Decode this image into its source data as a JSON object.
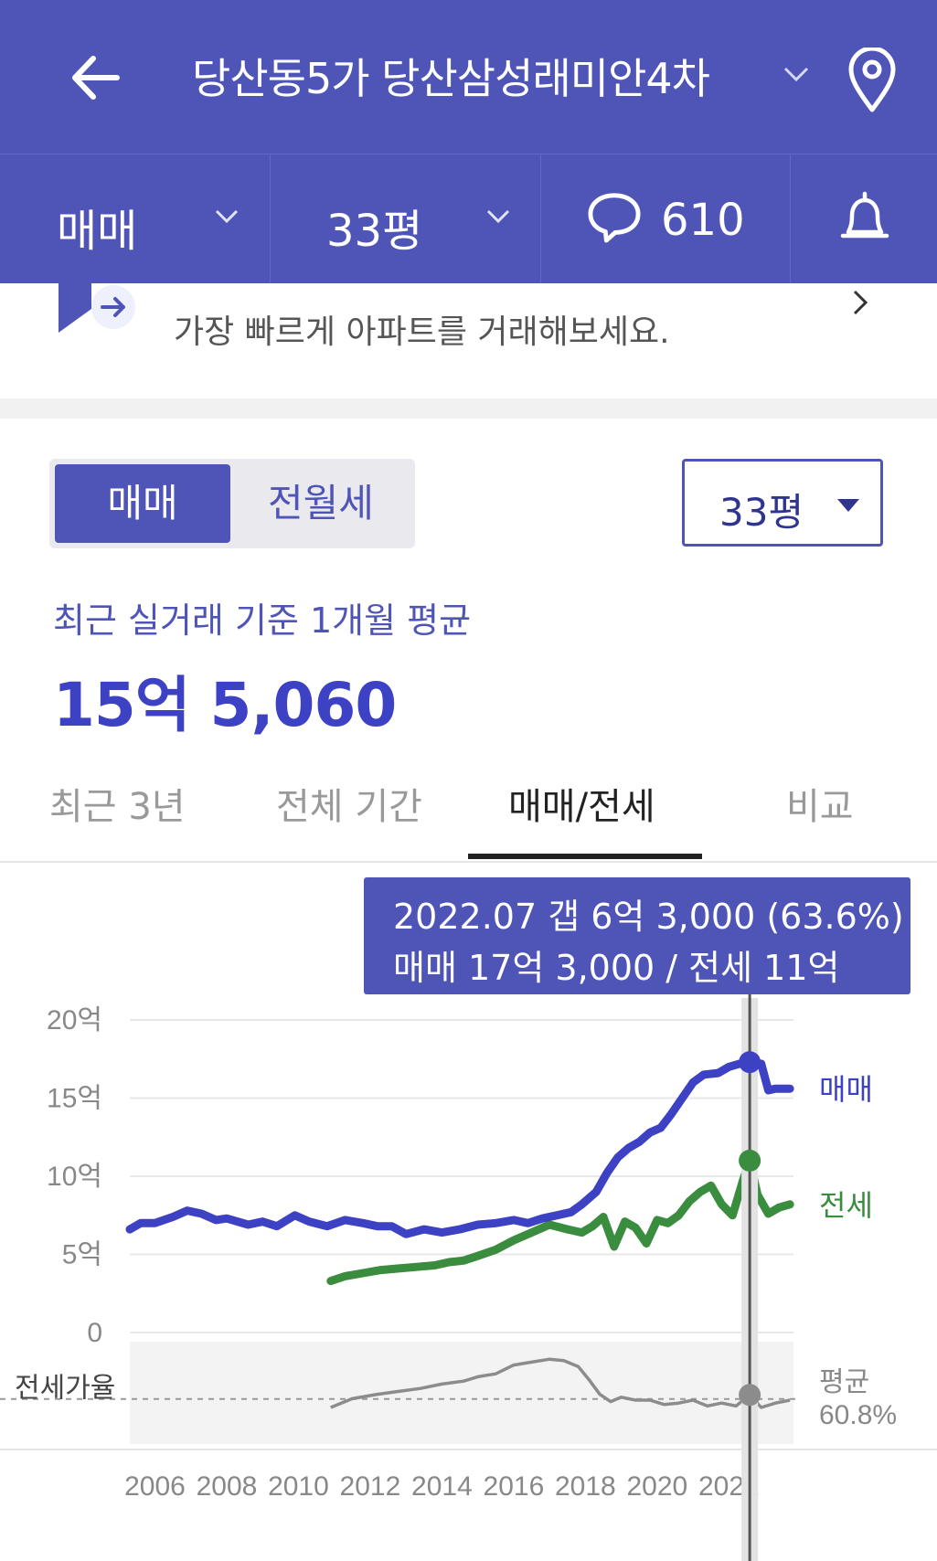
{
  "header": {
    "title": "당산동5가 당산삼성래미안4차"
  },
  "subbar": {
    "deal_type": "매매",
    "size": "33평",
    "comment_count": "610"
  },
  "banner": {
    "text": "가장 빠르게 아파트를 거래해보세요."
  },
  "toggle": {
    "sale": "매매",
    "rent": "전월세"
  },
  "size_select": {
    "label": "33평"
  },
  "average": {
    "label": "최근 실거래 기준 1개월 평균",
    "value": "15억 5,060"
  },
  "tabs": [
    "최근 3년",
    "전체 기간",
    "매매/전세",
    "비교"
  ],
  "tooltip": {
    "line1": "2022.07  갭 6억 3,000 (63.6%)",
    "line2": "매매 17억 3,000 / 전세 11억"
  },
  "colors": {
    "brand": "#4f55b7",
    "sale": "#3d41c4",
    "jeonse": "#3a8c3f",
    "ratio": "#8c8c8c"
  },
  "chart_data": {
    "type": "line",
    "yticks": [
      "20억",
      "15억",
      "10억",
      "5억",
      "0"
    ],
    "ylim": [
      0,
      20
    ],
    "xticks": [
      "2006",
      "2008",
      "2010",
      "2012",
      "2014",
      "2016",
      "2018",
      "2020",
      "2022"
    ],
    "xlim": [
      2005.3,
      2023.8
    ],
    "series": [
      {
        "name": "매매",
        "x": [
          2005.3,
          2005.6,
          2006,
          2006.5,
          2006.9,
          2007.3,
          2007.7,
          2008,
          2008.6,
          2009,
          2009.4,
          2009.9,
          2010.3,
          2010.8,
          2011.3,
          2011.8,
          2012.2,
          2012.6,
          2013,
          2013.5,
          2014,
          2014.5,
          2015,
          2015.5,
          2016,
          2016.4,
          2016.8,
          2017.2,
          2017.6,
          2017.9,
          2018.3,
          2018.6,
          2018.9,
          2019.2,
          2019.5,
          2019.8,
          2020.1,
          2020.4,
          2020.7,
          2021,
          2021.3,
          2021.7,
          2022,
          2022.3,
          2022.58,
          2022.9,
          2023.1,
          2023.3,
          2023.7
        ],
        "values": [
          6.6,
          7,
          7,
          7.4,
          7.8,
          7.6,
          7.2,
          7.3,
          6.9,
          7.1,
          6.8,
          7.5,
          7.1,
          6.8,
          7.2,
          7,
          6.8,
          6.8,
          6.3,
          6.6,
          6.4,
          6.6,
          6.9,
          7,
          7.2,
          7,
          7.3,
          7.5,
          7.7,
          8.2,
          9,
          10.2,
          11.2,
          11.8,
          12.2,
          12.8,
          13.1,
          14,
          15,
          16,
          16.5,
          16.6,
          17,
          17.2,
          17.3,
          17.2,
          15.5,
          15.6,
          15.6
        ]
      },
      {
        "name": "전세",
        "x": [
          2010.9,
          2011.3,
          2011.8,
          2012.3,
          2012.8,
          2013.3,
          2013.8,
          2014.2,
          2014.6,
          2015,
          2015.5,
          2016,
          2016.5,
          2017,
          2017.5,
          2017.9,
          2018.2,
          2018.5,
          2018.8,
          2019.1,
          2019.4,
          2019.7,
          2020,
          2020.3,
          2020.6,
          2020.9,
          2021.2,
          2021.5,
          2021.8,
          2022.1,
          2022.4,
          2022.58,
          2022.8,
          2023.1,
          2023.4,
          2023.7
        ],
        "values": [
          3.3,
          3.6,
          3.8,
          4,
          4.1,
          4.2,
          4.3,
          4.5,
          4.6,
          4.9,
          5.3,
          5.9,
          6.4,
          6.9,
          6.6,
          6.4,
          6.8,
          7.4,
          5.5,
          7.1,
          6.7,
          5.7,
          7.2,
          7,
          7.5,
          8.4,
          9,
          9.4,
          8.2,
          7.5,
          9.8,
          11,
          8.8,
          7.6,
          8,
          8.2
        ]
      },
      {
        "name": "전세가율",
        "x": [
          2010.9,
          2011.5,
          2012.2,
          2012.8,
          2013.4,
          2014,
          2014.6,
          2015,
          2015.5,
          2016,
          2016.5,
          2017,
          2017.4,
          2017.8,
          2018.1,
          2018.4,
          2018.7,
          2019,
          2019.4,
          2019.8,
          2020.2,
          2020.6,
          2021,
          2021.4,
          2021.8,
          2022.2,
          2022.58,
          2022.9,
          2023.3,
          2023.7
        ],
        "values": [
          55,
          61,
          64,
          66,
          68,
          71,
          73,
          76,
          78,
          84,
          86,
          88,
          87,
          83,
          74,
          64,
          59,
          62,
          60,
          60,
          57,
          58,
          60,
          56,
          58,
          56,
          63.6,
          55,
          58,
          60
        ]
      }
    ],
    "ratio_average": {
      "label": "평균",
      "value": "60.8%"
    },
    "legend": [
      "매매",
      "전세"
    ],
    "ratio_label": "전세가율",
    "grid": true
  }
}
